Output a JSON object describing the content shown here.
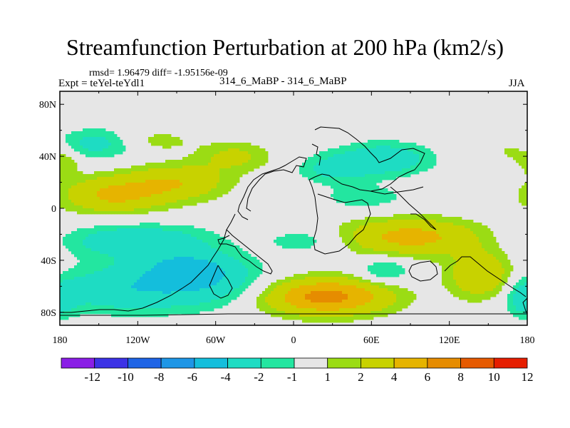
{
  "header": {
    "title": "Streamfunction Perturbation at 200 hPa (km2/s)",
    "stats": "rmsd= 1.96479 diff= -1.95156e-09",
    "experiment": "Expt = teYel-teYdl1",
    "comparison": "314_6_MaBP - 314_6_MaBP",
    "season": "JJA"
  },
  "chart_data": {
    "type": "heatmap",
    "title": "Streamfunction Perturbation at 200 hPa (km2/s)",
    "xlabel": "",
    "ylabel": "",
    "xlim": [
      -180,
      180
    ],
    "ylim": [
      -90,
      90
    ],
    "x_ticks": [
      {
        "value": -180,
        "label": "180"
      },
      {
        "value": -120,
        "label": "120W"
      },
      {
        "value": -60,
        "label": "60W"
      },
      {
        "value": 0,
        "label": "0"
      },
      {
        "value": 60,
        "label": "60E"
      },
      {
        "value": 120,
        "label": "120E"
      },
      {
        "value": 180,
        "label": "180"
      }
    ],
    "y_ticks": [
      {
        "value": 80,
        "label": "80N"
      },
      {
        "value": 40,
        "label": "40N"
      },
      {
        "value": 0,
        "label": "0"
      },
      {
        "value": -40,
        "label": "40S"
      },
      {
        "value": -80,
        "label": "80S"
      }
    ],
    "colorbar": {
      "labels": [
        "-12",
        "-10",
        "-8",
        "-6",
        "-4",
        "-2",
        "-1",
        "1",
        "2",
        "4",
        "6",
        "8",
        "10",
        "12"
      ],
      "colors": [
        "#8a1ee6",
        "#3c32e6",
        "#1e64e6",
        "#1e96e6",
        "#14bedc",
        "#1edcc3",
        "#23e6a0",
        "#e6e6e6",
        "#9bdc14",
        "#c8d200",
        "#e6b400",
        "#e68c00",
        "#e65a00",
        "#e61e00"
      ]
    },
    "field_levels": [
      -12,
      -10,
      -8,
      -6,
      -4,
      -2,
      -1,
      1,
      2,
      4,
      6,
      8,
      10,
      12
    ],
    "features": [
      {
        "lon": -120,
        "lat": -25,
        "value": -3.6,
        "sx": 40,
        "sy": 9
      },
      {
        "lon": -80,
        "lat": -45,
        "value": -3.2,
        "sx": 28,
        "sy": 9
      },
      {
        "lon": -125,
        "lat": -62,
        "value": -3.6,
        "sx": 45,
        "sy": 13
      },
      {
        "lon": -60,
        "lat": -58,
        "value": -2.2,
        "sx": 30,
        "sy": 12
      },
      {
        "lon": -140,
        "lat": 10,
        "value": 4.2,
        "sx": 28,
        "sy": 10
      },
      {
        "lon": -90,
        "lat": 20,
        "value": 3.6,
        "sx": 28,
        "sy": 10
      },
      {
        "lon": -45,
        "lat": 40,
        "value": 2.4,
        "sx": 20,
        "sy": 8
      },
      {
        "lon": 25,
        "lat": -68,
        "value": 6.8,
        "sx": 35,
        "sy": 10
      },
      {
        "lon": 90,
        "lat": -22,
        "value": 4.8,
        "sx": 38,
        "sy": 10
      },
      {
        "lon": 145,
        "lat": -52,
        "value": 4.2,
        "sx": 18,
        "sy": 13
      },
      {
        "lon": 70,
        "lat": 38,
        "value": -3.4,
        "sx": 26,
        "sy": 9
      },
      {
        "lon": 30,
        "lat": 30,
        "value": -2.2,
        "sx": 20,
        "sy": 8
      },
      {
        "lon": 70,
        "lat": -48,
        "value": -2.5,
        "sx": 14,
        "sy": 7
      },
      {
        "lon": -150,
        "lat": 50,
        "value": -2.8,
        "sx": 24,
        "sy": 8
      },
      {
        "lon": -110,
        "lat": 52,
        "value": 1.8,
        "sx": 22,
        "sy": 6
      },
      {
        "lon": 10,
        "lat": -25,
        "value": -1.8,
        "sx": 22,
        "sy": 7
      },
      {
        "lon": 55,
        "lat": 8,
        "value": -1.6,
        "sx": 25,
        "sy": 7
      },
      {
        "lon": 170,
        "lat": 45,
        "value": 1.6,
        "sx": 12,
        "sy": 7
      },
      {
        "lon": -175,
        "lat": 35,
        "value": 1.6,
        "sx": 8,
        "sy": 7
      },
      {
        "lon": 178,
        "lat": -70,
        "value": -2.5,
        "sx": 10,
        "sy": 10
      }
    ]
  }
}
